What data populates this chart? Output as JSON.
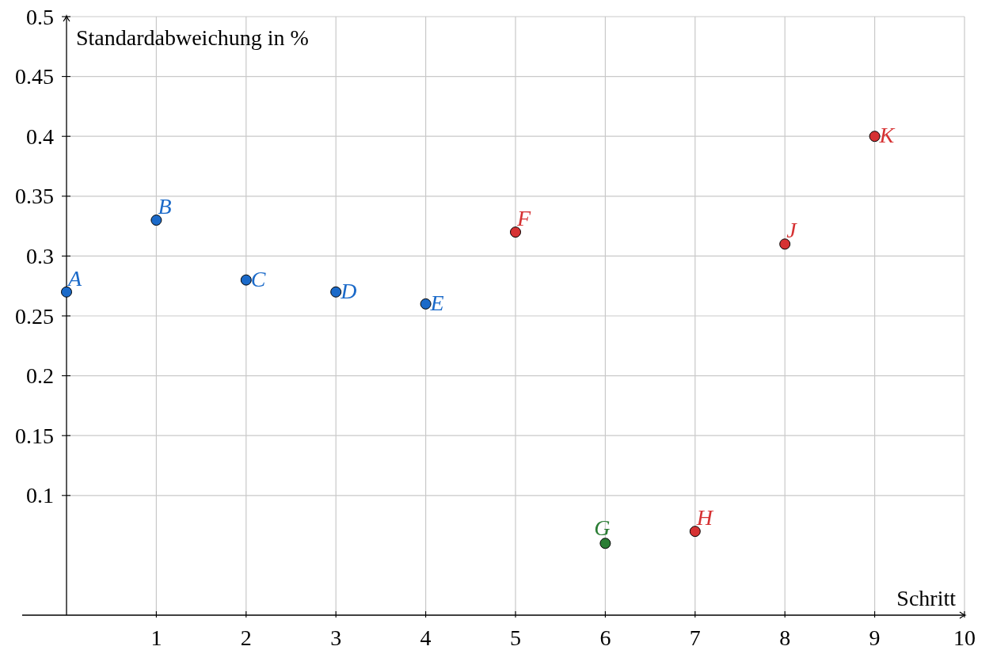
{
  "chart_data": {
    "type": "scatter",
    "xlabel": "Schritt",
    "ylabel": "Standardabweichung in %",
    "series": [
      {
        "color": "#1b6ac9",
        "x": [
          0,
          1,
          2,
          3,
          4
        ],
        "values": [
          0.27,
          0.33,
          0.28,
          0.27,
          0.26
        ]
      },
      {
        "color": "#d63233",
        "x": [
          5,
          7,
          8,
          9
        ],
        "values": [
          0.32,
          0.07,
          0.31,
          0.4
        ]
      },
      {
        "color": "#2a7d34",
        "x": [
          6
        ],
        "values": [
          0.06
        ]
      }
    ],
    "annotations": [
      {
        "text": "A",
        "x": 0,
        "y": 0.27
      },
      {
        "text": "B",
        "x": 1,
        "y": 0.33
      },
      {
        "text": "C",
        "x": 2,
        "y": 0.28
      },
      {
        "text": "D",
        "x": 3,
        "y": 0.27
      },
      {
        "text": "E",
        "x": 4,
        "y": 0.26
      },
      {
        "text": "F",
        "x": 5,
        "y": 0.32
      },
      {
        "text": "G",
        "x": 6,
        "y": 0.06
      },
      {
        "text": "H",
        "x": 7,
        "y": 0.07
      },
      {
        "text": "J",
        "x": 8,
        "y": 0.31
      },
      {
        "text": "K",
        "x": 9,
        "y": 0.4
      }
    ],
    "xlim": [
      0,
      10
    ],
    "ylim": [
      0,
      0.5
    ],
    "xticks": [
      1,
      2,
      3,
      4,
      5,
      6,
      7,
      8,
      9,
      10
    ],
    "yticks": [
      0.1,
      0.15,
      0.2,
      0.25,
      0.3,
      0.35,
      0.4,
      0.45,
      0.5
    ],
    "grid": true,
    "marker": "circle"
  }
}
